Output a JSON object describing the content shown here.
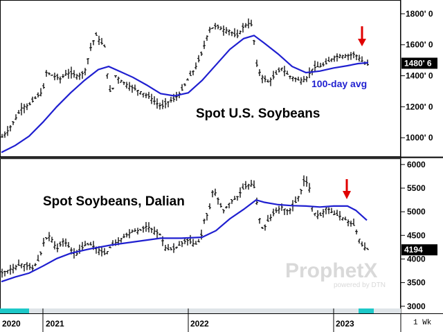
{
  "chart_data": [
    {
      "type": "line",
      "title": "Spot U.S. Soybeans",
      "ylim": [
        880,
        1880
      ],
      "yticks": [
        "1800' 0",
        "1600' 0",
        "1400' 0",
        "1200' 0",
        "1000' 0"
      ],
      "ytick_values": [
        1800,
        1600,
        1400,
        1200,
        1000
      ],
      "last_value_label": "1480' 6",
      "last_value": 1480.75,
      "avg_label": "100-day avg",
      "price_color": "#000000",
      "avg_color": "#1f1fd0",
      "arrow_color": "#e00000",
      "price_points": [
        [
          0,
          1000
        ],
        [
          10,
          1050
        ],
        [
          20,
          1120
        ],
        [
          30,
          1200
        ],
        [
          40,
          1210
        ],
        [
          50,
          1260
        ],
        [
          60,
          1300
        ],
        [
          65,
          1420
        ],
        [
          75,
          1400
        ],
        [
          85,
          1380
        ],
        [
          95,
          1420
        ],
        [
          110,
          1400
        ],
        [
          120,
          1420
        ],
        [
          130,
          1600
        ],
        [
          137,
          1660
        ],
        [
          143,
          1620
        ],
        [
          150,
          1580
        ],
        [
          155,
          1300
        ],
        [
          160,
          1300
        ],
        [
          165,
          1400
        ],
        [
          175,
          1360
        ],
        [
          190,
          1320
        ],
        [
          200,
          1300
        ],
        [
          215,
          1260
        ],
        [
          225,
          1220
        ],
        [
          232,
          1200
        ],
        [
          240,
          1230
        ],
        [
          250,
          1250
        ],
        [
          260,
          1300
        ],
        [
          270,
          1380
        ],
        [
          280,
          1450
        ],
        [
          290,
          1550
        ],
        [
          300,
          1700
        ],
        [
          310,
          1720
        ],
        [
          320,
          1700
        ],
        [
          330,
          1690
        ],
        [
          340,
          1650
        ],
        [
          350,
          1720
        ],
        [
          358,
          1740
        ],
        [
          363,
          1720
        ],
        [
          368,
          1480
        ],
        [
          375,
          1400
        ],
        [
          385,
          1360
        ],
        [
          395,
          1400
        ],
        [
          405,
          1450
        ],
        [
          415,
          1400
        ],
        [
          425,
          1380
        ],
        [
          430,
          1370
        ],
        [
          440,
          1380
        ],
        [
          450,
          1450
        ],
        [
          460,
          1460
        ],
        [
          470,
          1480
        ],
        [
          480,
          1520
        ],
        [
          490,
          1530
        ],
        [
          500,
          1530
        ],
        [
          510,
          1540
        ],
        [
          518,
          1510
        ],
        [
          524,
          1480
        ],
        [
          530,
          1470
        ]
      ],
      "avg_points": [
        [
          0,
          905
        ],
        [
          20,
          950
        ],
        [
          40,
          1010
        ],
        [
          60,
          1100
        ],
        [
          80,
          1200
        ],
        [
          100,
          1290
        ],
        [
          120,
          1370
        ],
        [
          140,
          1440
        ],
        [
          155,
          1460
        ],
        [
          170,
          1430
        ],
        [
          190,
          1390
        ],
        [
          210,
          1340
        ],
        [
          230,
          1285
        ],
        [
          250,
          1270
        ],
        [
          270,
          1290
        ],
        [
          290,
          1370
        ],
        [
          310,
          1470
        ],
        [
          330,
          1570
        ],
        [
          350,
          1640
        ],
        [
          365,
          1660
        ],
        [
          380,
          1610
        ],
        [
          400,
          1540
        ],
        [
          420,
          1460
        ],
        [
          440,
          1420
        ],
        [
          460,
          1430
        ],
        [
          480,
          1450
        ],
        [
          500,
          1465
        ],
        [
          515,
          1478
        ],
        [
          530,
          1485
        ]
      ]
    },
    {
      "type": "line",
      "title": "Spot Soybeans, Dalian",
      "ylim": [
        2850,
        6100
      ],
      "yticks": [
        "6000",
        "5500",
        "5000",
        "4500",
        "4000",
        "3500",
        "3000"
      ],
      "ytick_values": [
        6000,
        5500,
        5000,
        4500,
        4000,
        3500,
        3000
      ],
      "last_value_label": "4194",
      "last_value": 4194,
      "price_color": "#000000",
      "avg_color": "#1f1fd0",
      "arrow_color": "#e00000",
      "price_points": [
        [
          0,
          3700
        ],
        [
          15,
          3800
        ],
        [
          30,
          3900
        ],
        [
          45,
          3800
        ],
        [
          55,
          4000
        ],
        [
          62,
          4400
        ],
        [
          70,
          4500
        ],
        [
          80,
          4200
        ],
        [
          90,
          4400
        ],
        [
          100,
          4200
        ],
        [
          110,
          4100
        ],
        [
          120,
          4300
        ],
        [
          130,
          4300
        ],
        [
          140,
          4200
        ],
        [
          150,
          4100
        ],
        [
          160,
          4300
        ],
        [
          170,
          4400
        ],
        [
          180,
          4500
        ],
        [
          190,
          4600
        ],
        [
          200,
          4600
        ],
        [
          210,
          4700
        ],
        [
          220,
          4600
        ],
        [
          230,
          4500
        ],
        [
          238,
          4200
        ],
        [
          248,
          4200
        ],
        [
          258,
          4300
        ],
        [
          268,
          4400
        ],
        [
          280,
          4300
        ],
        [
          288,
          4400
        ],
        [
          292,
          4800
        ],
        [
          300,
          5000
        ],
        [
          306,
          5500
        ],
        [
          312,
          5300
        ],
        [
          320,
          5000
        ],
        [
          330,
          5200
        ],
        [
          340,
          5300
        ],
        [
          350,
          5500
        ],
        [
          360,
          5600
        ],
        [
          366,
          5500
        ],
        [
          372,
          4900
        ],
        [
          378,
          4600
        ],
        [
          385,
          4800
        ],
        [
          395,
          5000
        ],
        [
          405,
          5100
        ],
        [
          415,
          5000
        ],
        [
          425,
          5200
        ],
        [
          432,
          5400
        ],
        [
          438,
          5700
        ],
        [
          445,
          5500
        ],
        [
          450,
          5000
        ],
        [
          460,
          4900
        ],
        [
          470,
          5100
        ],
        [
          480,
          4950
        ],
        [
          490,
          4900
        ],
        [
          500,
          4800
        ],
        [
          510,
          4700
        ],
        [
          520,
          4300
        ],
        [
          528,
          4200
        ]
      ],
      "avg_points": [
        [
          0,
          3520
        ],
        [
          20,
          3620
        ],
        [
          40,
          3700
        ],
        [
          60,
          3850
        ],
        [
          80,
          4010
        ],
        [
          100,
          4120
        ],
        [
          130,
          4220
        ],
        [
          160,
          4300
        ],
        [
          200,
          4380
        ],
        [
          230,
          4440
        ],
        [
          260,
          4440
        ],
        [
          290,
          4460
        ],
        [
          310,
          4600
        ],
        [
          330,
          4850
        ],
        [
          350,
          5050
        ],
        [
          368,
          5250
        ],
        [
          380,
          5200
        ],
        [
          400,
          5150
        ],
        [
          420,
          5130
        ],
        [
          440,
          5120
        ],
        [
          460,
          5100
        ],
        [
          480,
          5120
        ],
        [
          500,
          5120
        ],
        [
          512,
          5030
        ],
        [
          528,
          4820
        ]
      ]
    }
  ],
  "x_axis": {
    "labels": [
      "2020",
      "2021",
      "2022",
      "2023"
    ],
    "period": "1 Wk"
  },
  "watermark": {
    "name": "ProphetX",
    "sub": "powered by DTN"
  }
}
